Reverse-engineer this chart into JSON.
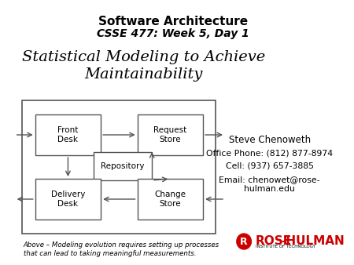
{
  "title_line1": "Software Architecture",
  "title_line2": "CSSE 477: Week 5, Day 1",
  "subtitle": "Statistical Modeling to Achieve\nMaintainability",
  "contact_name": "Steve Chenoweth",
  "contact_phone": "Office Phone: (812) 877-8974",
  "contact_cell": "Cell: (937) 657-3885",
  "contact_email": "Email: chenowet@rose-\nhulman.edu",
  "caption": "Above – Modeling evolution requires setting up processes\nthat can lead to taking meaningful measurements.",
  "bg_color": "#ffffff",
  "box_edge": "#555555",
  "text_color": "#000000",
  "red_color": "#cc0000"
}
